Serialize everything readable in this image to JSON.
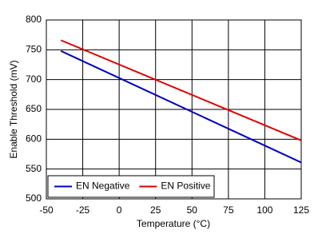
{
  "chart_data": {
    "type": "line",
    "x": [
      -40,
      125
    ],
    "series": [
      {
        "name": "EN Negative",
        "color": "#0000c0",
        "values": [
          748,
          561
        ]
      },
      {
        "name": "EN Positive",
        "color": "#e00000",
        "values": [
          766,
          598
        ]
      }
    ],
    "xlabel": "Temperature (°C)",
    "ylabel": "Enable Threshold (mV)",
    "xlim": [
      -50,
      125
    ],
    "xticks": [
      -50,
      -25,
      0,
      25,
      50,
      75,
      100,
      125
    ],
    "ylim": [
      500,
      800
    ],
    "yticks": [
      500,
      550,
      600,
      650,
      700,
      750,
      800
    ],
    "grid": true,
    "legend": "lower left"
  }
}
